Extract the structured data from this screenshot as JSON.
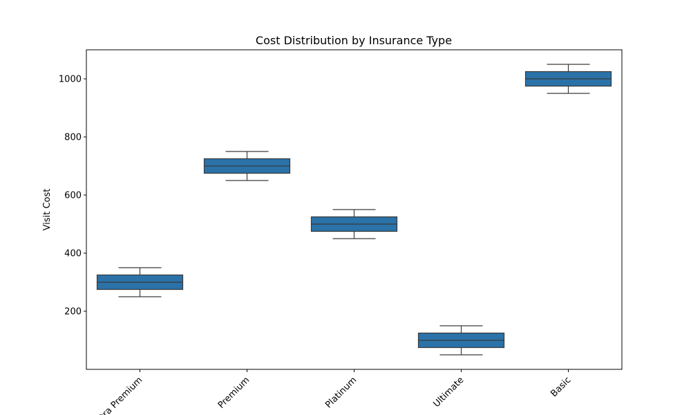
{
  "chart_data": {
    "type": "box",
    "title": "Cost Distribution by Insurance Type",
    "xlabel": "",
    "ylabel": "Visit Cost",
    "ylim": [
      0,
      1100
    ],
    "yticks": [
      "200",
      "400",
      "600",
      "800",
      "1000"
    ],
    "grid": false,
    "categories": [
      "Ultra Premium",
      "Premium",
      "Platinum",
      "Ultimate",
      "Basic"
    ],
    "boxes": [
      {
        "category": "Ultra Premium",
        "min": 250,
        "q1": 275,
        "median": 300,
        "q3": 325,
        "max": 350
      },
      {
        "category": "Premium",
        "min": 650,
        "q1": 675,
        "median": 700,
        "q3": 725,
        "max": 750
      },
      {
        "category": "Platinum",
        "min": 450,
        "q1": 475,
        "median": 500,
        "q3": 525,
        "max": 550
      },
      {
        "category": "Ultimate",
        "min": 50,
        "q1": 75,
        "median": 100,
        "q3": 125,
        "max": 150
      },
      {
        "category": "Basic",
        "min": 950,
        "q1": 975,
        "median": 1000,
        "q3": 1025,
        "max": 1050
      }
    ],
    "colors": {
      "box_fill": "#2a72a8",
      "line": "#3a3a3a",
      "axis": "#000000"
    }
  }
}
